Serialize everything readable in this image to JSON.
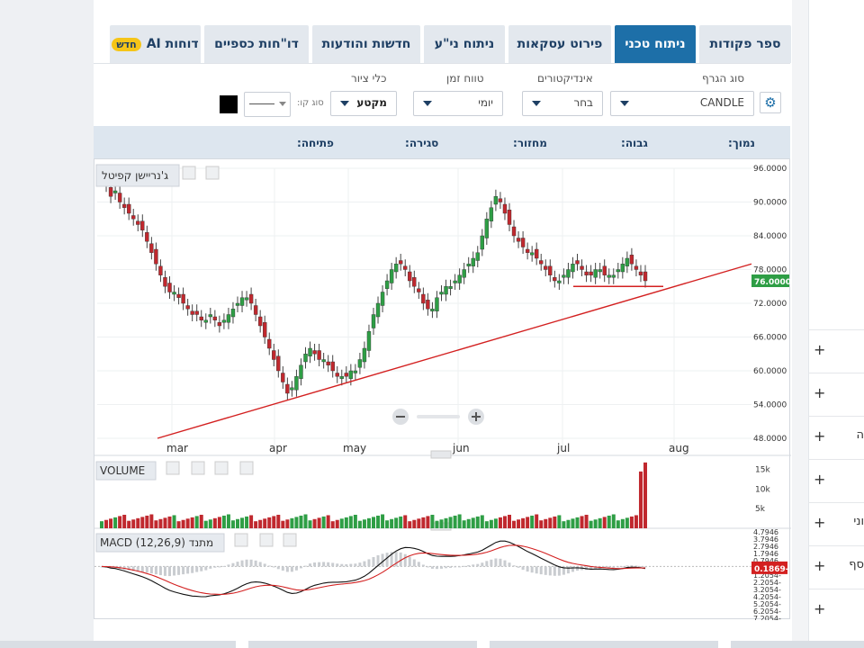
{
  "tabs": [
    {
      "label": "ספר פקודות",
      "active": false
    },
    {
      "label": "ניתוח טכני",
      "active": true
    },
    {
      "label": "פירוט עסקאות",
      "active": false
    },
    {
      "label": "ניתוח ני\"ע",
      "active": false
    },
    {
      "label": "חדשות והודעות",
      "active": false
    },
    {
      "label": "דו\"חות כספיים",
      "active": false
    },
    {
      "label": "דוחות AI",
      "badge": "חדש",
      "active": false
    }
  ],
  "controls": {
    "chart_type_label": "סוג הגרף",
    "chart_type_value": "CANDLE",
    "indicators_label": "אינדיקטורים",
    "indicators_value": "בחר",
    "time_range_label": "טווח זמן",
    "time_range_value": "יומי",
    "drawing_tools_label": "כלי ציור",
    "drawing_tools_value": "מקטע",
    "line_type_label": "סוג קו:",
    "gear_icon": "gear-icon"
  },
  "info_bar": {
    "low": "נמוך",
    "high": "גבוה",
    "volume": "מחזור",
    "close": "סגירה",
    "open": "פתיחה",
    "separator": ":"
  },
  "side_panel": {
    "items": [
      {
        "text": ""
      },
      {
        "text": ""
      },
      {
        "text": "ה"
      },
      {
        "text": ""
      },
      {
        "text": "וני"
      },
      {
        "text": "סף"
      },
      {
        "text": ""
      }
    ]
  },
  "chart_data": [
    {
      "type": "candlestick",
      "security_label": "ג'נריישן קפיטל",
      "x_tick_labels": [
        "mar",
        "apr",
        "may",
        "jun",
        "jul",
        "aug"
      ],
      "y_tick_labels": [
        "96.0000",
        "90.0000",
        "84.0000",
        "78.0000",
        "72.0000",
        "66.0000",
        "60.0000",
        "54.0000",
        "48.0000"
      ],
      "ylim": [
        48,
        96
      ],
      "last_price": "76.0000",
      "last_price_value": 76,
      "up_color": "#2e9e45",
      "down_color": "#c0282e",
      "trendline_color": "#d32020",
      "close_series": [
        94,
        93,
        91,
        92,
        90,
        89,
        88,
        87,
        86,
        85,
        83,
        81,
        79,
        77,
        75,
        74,
        74,
        73,
        72,
        71,
        70,
        70,
        69,
        69,
        70,
        69,
        68,
        69,
        70,
        71,
        72,
        73,
        73,
        72,
        70,
        68,
        66,
        64,
        62,
        60,
        58,
        56,
        57,
        59,
        61,
        63,
        64,
        63,
        62,
        62,
        61,
        60,
        59,
        59,
        59,
        60,
        60,
        62,
        64,
        67,
        70,
        72,
        74,
        76,
        78,
        79,
        79,
        78,
        76,
        75,
        74,
        72,
        71,
        71,
        73,
        74,
        75,
        75,
        76,
        77,
        78,
        79,
        80,
        81,
        84,
        87,
        89,
        91,
        90,
        88,
        86,
        84,
        83,
        82,
        81,
        81,
        80,
        79,
        78,
        77,
        76,
        76,
        77,
        78,
        79,
        79,
        78,
        77,
        77,
        78,
        78,
        77,
        77,
        77,
        78,
        79,
        80,
        79,
        78,
        77,
        76
      ],
      "trendline": {
        "from_price": 48,
        "to_price": 79,
        "span": "mar to aug"
      },
      "support_line_price": 75
    },
    {
      "type": "bar",
      "label": "VOLUME",
      "y_tick_labels": [
        "15k",
        "10k",
        "5k"
      ],
      "ylim": [
        0,
        17000
      ]
    },
    {
      "type": "line",
      "label": "MACD (12,26,9) מתנד",
      "macd_value": "0.1869-",
      "y_tick_labels": [
        "4.7946",
        "3.7946",
        "2.7946",
        "1.7946",
        "0.7946",
        "0.2054-",
        "1.2054-",
        "2.2054-",
        "3.2054-",
        "4.2054-",
        "5.2054-",
        "6.2054-",
        "7.2054-"
      ],
      "ylim": [
        -7.2,
        4.8
      ]
    }
  ]
}
